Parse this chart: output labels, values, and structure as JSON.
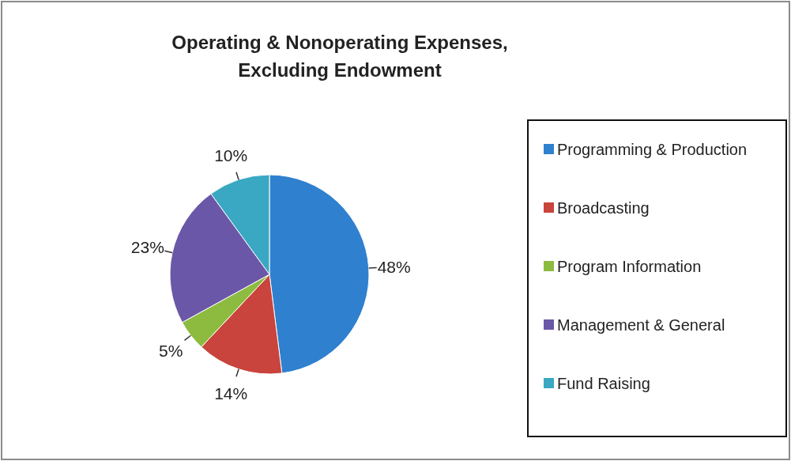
{
  "chart_data": {
    "type": "pie",
    "title": "Operating & Nonoperating Expenses,\nExcluding Endowment",
    "categories": [
      "Programming & Production",
      "Broadcasting",
      "Program Information",
      "Management & General",
      "Fund Raising"
    ],
    "values": [
      48,
      14,
      5,
      23,
      10
    ],
    "colors": [
      "#2f80cf",
      "#c9443c",
      "#8cbb3f",
      "#6b57a8",
      "#3aa8c2"
    ],
    "value_labels": [
      "48%",
      "14%",
      "5%",
      "23%",
      "10%"
    ],
    "legend": "right"
  }
}
